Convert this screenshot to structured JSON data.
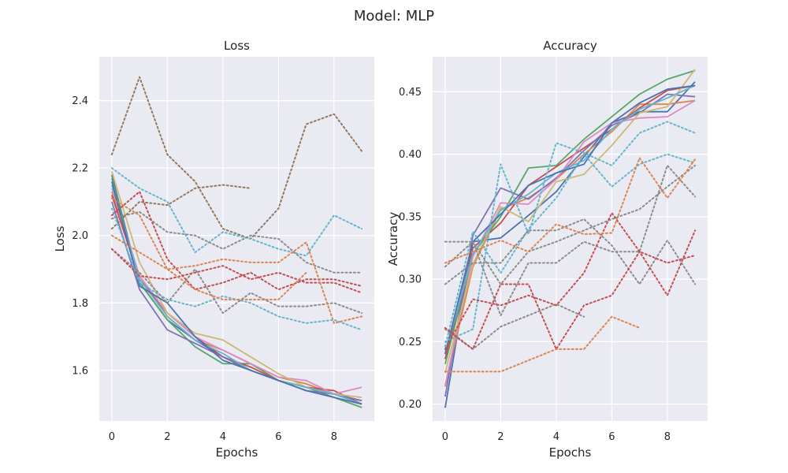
{
  "figure": {
    "title": "Model: MLP",
    "background": "#ffffff",
    "axes_background": "#eaeaf2",
    "grid_color": "#ffffff"
  },
  "colors": [
    "#4c72b0",
    "#dd8452",
    "#55a868",
    "#c44e52",
    "#8172b3",
    "#937860",
    "#da8bc3",
    "#8c8c8c",
    "#ccb974",
    "#64b5cd"
  ],
  "chart_data": [
    {
      "type": "line",
      "title": "Loss",
      "xlabel": "Epochs",
      "ylabel": "Loss",
      "xlim": [
        -0.45,
        9.45
      ],
      "ylim": [
        1.45,
        2.53
      ],
      "xticks": [
        0,
        2,
        4,
        6,
        8
      ],
      "yticks": [
        1.6,
        1.8,
        2.0,
        2.2,
        2.4
      ],
      "ytick_labels": [
        "1.6",
        "1.8",
        "2.0",
        "2.2",
        "2.4"
      ],
      "grid": true,
      "series": [
        {
          "style": "solid",
          "color": "#4c72b0",
          "x": [
            0,
            1,
            2,
            3,
            4,
            5,
            6,
            7,
            8,
            9
          ],
          "values": [
            2.18,
            1.86,
            1.75,
            1.69,
            1.64,
            1.6,
            1.57,
            1.55,
            1.53,
            1.51
          ]
        },
        {
          "style": "solid",
          "color": "#dd8452",
          "x": [
            0,
            1,
            2,
            3,
            4,
            5,
            6,
            7,
            8,
            9
          ],
          "values": [
            2.13,
            1.88,
            1.76,
            1.69,
            1.66,
            1.62,
            1.58,
            1.56,
            1.53,
            1.5
          ]
        },
        {
          "style": "solid",
          "color": "#55a868",
          "x": [
            0,
            1,
            2,
            3,
            4,
            5,
            6,
            7,
            8,
            9
          ],
          "values": [
            2.17,
            1.86,
            1.75,
            1.67,
            1.62,
            1.62,
            1.57,
            1.55,
            1.52,
            1.49
          ]
        },
        {
          "style": "solid",
          "color": "#c44e52",
          "x": [
            0,
            1,
            2,
            3,
            4,
            5,
            6,
            7,
            8,
            9
          ],
          "values": [
            2.12,
            1.87,
            1.77,
            1.7,
            1.64,
            1.61,
            1.57,
            1.55,
            1.54,
            1.5
          ]
        },
        {
          "style": "solid",
          "color": "#8172b3",
          "x": [
            0,
            1,
            2,
            3,
            4,
            5,
            6,
            7,
            8,
            9
          ],
          "values": [
            2.1,
            1.84,
            1.72,
            1.68,
            1.64,
            1.6,
            1.57,
            1.54,
            1.53,
            1.51
          ]
        },
        {
          "style": "solid",
          "color": "#da8bc3",
          "x": [
            0,
            1,
            2,
            3,
            4,
            5,
            6,
            7,
            8,
            9
          ],
          "values": [
            2.14,
            1.88,
            1.77,
            1.7,
            1.66,
            1.62,
            1.58,
            1.57,
            1.53,
            1.55
          ]
        },
        {
          "style": "solid",
          "color": "#ccb974",
          "x": [
            0,
            1,
            2,
            3,
            4,
            5,
            6,
            7,
            8,
            9
          ],
          "values": [
            2.19,
            1.92,
            1.77,
            1.71,
            1.69,
            1.64,
            1.59,
            1.55,
            1.53,
            1.52
          ]
        },
        {
          "style": "solid",
          "color": "#64b5cd",
          "x": [
            0,
            1,
            2,
            3,
            4,
            5,
            6,
            7,
            8,
            9
          ],
          "values": [
            2.15,
            1.87,
            1.76,
            1.69,
            1.65,
            1.6,
            1.57,
            1.55,
            1.53,
            1.5
          ]
        },
        {
          "style": "solid",
          "color": "#4c72b0",
          "x": [
            0,
            1,
            2,
            3,
            4,
            5,
            6,
            7,
            8,
            9
          ],
          "values": [
            2.16,
            1.85,
            1.8,
            1.7,
            1.63,
            1.6,
            1.57,
            1.54,
            1.52,
            1.5
          ]
        },
        {
          "style": "dotted",
          "color": "#937860",
          "x": [
            0,
            1,
            2,
            3,
            4,
            5,
            6,
            7,
            8,
            9
          ],
          "values": [
            2.24,
            2.47,
            2.24,
            2.16,
            2.02,
            1.99,
            2.08,
            2.33,
            2.36,
            2.25
          ]
        },
        {
          "style": "dotted",
          "color": "#937860",
          "x": [
            0,
            1,
            2,
            3,
            4,
            5
          ],
          "values": [
            2.02,
            2.1,
            2.09,
            2.14,
            2.15,
            2.14
          ]
        },
        {
          "style": "dotted",
          "color": "#64b5cd",
          "x": [
            0,
            1,
            2,
            3,
            4,
            5,
            6,
            7,
            8,
            9
          ],
          "values": [
            2.2,
            2.14,
            2.1,
            1.95,
            2.01,
            1.99,
            1.96,
            1.94,
            2.06,
            2.02
          ]
        },
        {
          "style": "dotted",
          "color": "#64b5cd",
          "x": [
            0,
            1,
            2,
            3,
            4,
            5,
            6,
            7,
            8,
            9
          ],
          "values": [
            2.08,
            1.86,
            1.81,
            1.79,
            1.82,
            1.8,
            1.76,
            1.74,
            1.75,
            1.72
          ]
        },
        {
          "style": "dotted",
          "color": "#8c8c8c",
          "x": [
            0,
            1,
            2,
            3,
            4,
            5,
            6,
            7,
            8,
            9
          ],
          "values": [
            2.05,
            2.07,
            2.01,
            2.0,
            1.96,
            2.0,
            1.99,
            1.92,
            1.89,
            1.89
          ]
        },
        {
          "style": "dotted",
          "color": "#8c8c8c",
          "x": [
            0,
            1,
            2,
            3,
            4,
            5,
            6,
            7,
            8,
            9
          ],
          "values": [
            1.96,
            1.89,
            1.8,
            1.9,
            1.77,
            1.83,
            1.79,
            1.79,
            1.8,
            1.77
          ]
        },
        {
          "style": "dotted",
          "color": "#c44e52",
          "x": [
            0,
            1,
            2,
            3,
            4,
            5,
            6,
            7,
            8,
            9
          ],
          "values": [
            2.06,
            2.13,
            1.93,
            1.84,
            1.86,
            1.89,
            1.84,
            1.87,
            1.87,
            1.85
          ]
        },
        {
          "style": "dotted",
          "color": "#c44e52",
          "x": [
            0,
            1,
            2,
            3,
            4,
            5,
            6,
            7,
            8,
            9
          ],
          "values": [
            1.96,
            1.88,
            1.87,
            1.89,
            1.91,
            1.87,
            1.89,
            1.86,
            1.86,
            1.83
          ]
        },
        {
          "style": "dotted",
          "color": "#dd8452",
          "x": [
            0,
            1,
            2,
            3,
            4,
            5,
            6,
            7,
            8,
            9
          ],
          "values": [
            2.11,
            2.06,
            1.9,
            1.91,
            1.93,
            1.92,
            1.92,
            1.98,
            1.74,
            1.76
          ]
        },
        {
          "style": "dotted",
          "color": "#dd8452",
          "x": [
            0,
            1,
            2,
            3,
            4,
            5,
            6,
            7
          ],
          "values": [
            2.0,
            1.95,
            1.9,
            1.84,
            1.81,
            1.81,
            1.81,
            1.89
          ]
        }
      ]
    },
    {
      "type": "line",
      "title": "Accuracy",
      "xlabel": "Epochs",
      "ylabel": "Accuracy",
      "xlim": [
        -0.45,
        9.45
      ],
      "ylim": [
        0.1865,
        0.478
      ],
      "xticks": [
        0,
        2,
        4,
        6,
        8
      ],
      "yticks": [
        0.2,
        0.25,
        0.3,
        0.35,
        0.4,
        0.45
      ],
      "ytick_labels": [
        "0.20",
        "0.25",
        "0.30",
        "0.35",
        "0.40",
        "0.45"
      ],
      "grid": true,
      "series": [
        {
          "style": "solid",
          "color": "#4c72b0",
          "x": [
            0,
            1,
            2,
            3,
            4,
            5,
            6,
            7,
            8,
            9
          ],
          "values": [
            0.197,
            0.33,
            0.333,
            0.351,
            0.37,
            0.398,
            0.425,
            0.434,
            0.434,
            0.458
          ]
        },
        {
          "style": "solid",
          "color": "#dd8452",
          "x": [
            0,
            1,
            2,
            3,
            4,
            5,
            6,
            7,
            8,
            9
          ],
          "values": [
            0.214,
            0.31,
            0.356,
            0.365,
            0.38,
            0.4,
            0.418,
            0.44,
            0.44,
            0.443
          ]
        },
        {
          "style": "solid",
          "color": "#55a868",
          "x": [
            0,
            1,
            2,
            3,
            4,
            5,
            6,
            7,
            8,
            9
          ],
          "values": [
            0.232,
            0.32,
            0.35,
            0.389,
            0.391,
            0.412,
            0.43,
            0.448,
            0.46,
            0.467
          ]
        },
        {
          "style": "solid",
          "color": "#c44e52",
          "x": [
            0,
            1,
            2,
            3,
            4,
            5,
            6,
            7,
            8,
            9
          ],
          "values": [
            0.236,
            0.325,
            0.345,
            0.375,
            0.39,
            0.405,
            0.42,
            0.437,
            0.451,
            0.455
          ]
        },
        {
          "style": "solid",
          "color": "#8172b3",
          "x": [
            0,
            1,
            2,
            3,
            4,
            5,
            6,
            7,
            8,
            9
          ],
          "values": [
            0.206,
            0.335,
            0.373,
            0.364,
            0.381,
            0.403,
            0.423,
            0.433,
            0.448,
            0.446
          ]
        },
        {
          "style": "solid",
          "color": "#da8bc3",
          "x": [
            0,
            1,
            2,
            3,
            4,
            5,
            6,
            7,
            8,
            9
          ],
          "values": [
            0.215,
            0.318,
            0.361,
            0.36,
            0.38,
            0.41,
            0.425,
            0.429,
            0.43,
            0.443
          ]
        },
        {
          "style": "solid",
          "color": "#ccb974",
          "x": [
            0,
            1,
            2,
            3,
            4,
            5,
            6,
            7,
            8,
            9
          ],
          "values": [
            0.225,
            0.312,
            0.358,
            0.346,
            0.378,
            0.384,
            0.407,
            0.433,
            0.438,
            0.468
          ]
        },
        {
          "style": "solid",
          "color": "#64b5cd",
          "x": [
            0,
            1,
            2,
            3,
            4,
            5,
            6,
            7,
            8,
            9
          ],
          "values": [
            0.241,
            0.32,
            0.355,
            0.368,
            0.385,
            0.395,
            0.42,
            0.436,
            0.445,
            0.455
          ]
        },
        {
          "style": "solid",
          "color": "#4c72b0",
          "x": [
            0,
            1,
            2,
            3,
            4,
            5,
            6,
            7,
            8,
            9
          ],
          "values": [
            0.24,
            0.33,
            0.352,
            0.375,
            0.385,
            0.392,
            0.425,
            0.441,
            0.452,
            0.455
          ]
        },
        {
          "style": "dotted",
          "color": "#64b5cd",
          "x": [
            0,
            1,
            2,
            3,
            4,
            5,
            6,
            7,
            8,
            9
          ],
          "values": [
            0.246,
            0.338,
            0.305,
            0.34,
            0.365,
            0.4,
            0.374,
            0.392,
            0.4,
            0.393
          ]
        },
        {
          "style": "dotted",
          "color": "#64b5cd",
          "x": [
            0,
            1,
            2,
            3,
            4,
            5,
            6,
            7,
            8,
            9
          ],
          "values": [
            0.25,
            0.26,
            0.392,
            0.336,
            0.409,
            0.401,
            0.391,
            0.417,
            0.426,
            0.417
          ]
        },
        {
          "style": "dotted",
          "color": "#8c8c8c",
          "x": [
            0,
            1,
            2,
            3,
            4,
            5,
            6,
            7,
            8,
            9
          ],
          "values": [
            0.33,
            0.33,
            0.271,
            0.313,
            0.313,
            0.33,
            0.322,
            0.322,
            0.391,
            0.366
          ]
        },
        {
          "style": "dotted",
          "color": "#8c8c8c",
          "x": [
            0,
            1,
            2,
            3,
            4,
            5,
            6,
            7,
            8,
            9
          ],
          "values": [
            0.296,
            0.313,
            0.313,
            0.339,
            0.339,
            0.348,
            0.327,
            0.296,
            0.331,
            0.296
          ]
        },
        {
          "style": "dotted",
          "color": "#8c8c8c",
          "x": [
            0,
            1,
            2,
            3,
            4,
            5,
            6,
            7,
            8,
            9
          ],
          "values": [
            0.31,
            0.33,
            0.296,
            0.322,
            0.33,
            0.339,
            0.348,
            0.356,
            0.374,
            0.391
          ]
        },
        {
          "style": "dotted",
          "color": "#8c8c8c",
          "x": [
            0,
            1,
            2,
            3,
            4,
            5
          ],
          "values": [
            0.26,
            0.244,
            0.262,
            0.271,
            0.28,
            0.27
          ]
        },
        {
          "style": "dotted",
          "color": "#c44e52",
          "x": [
            0,
            1,
            2,
            3,
            4,
            5,
            6,
            7,
            8,
            9
          ],
          "values": [
            0.261,
            0.244,
            0.296,
            0.296,
            0.244,
            0.279,
            0.287,
            0.322,
            0.287,
            0.339
          ]
        },
        {
          "style": "dotted",
          "color": "#c44e52",
          "x": [
            0,
            1,
            2,
            3,
            4,
            5,
            6,
            7,
            8,
            9
          ],
          "values": [
            0.244,
            0.284,
            0.279,
            0.287,
            0.279,
            0.305,
            0.353,
            0.322,
            0.313,
            0.319
          ]
        },
        {
          "style": "dotted",
          "color": "#dd8452",
          "x": [
            0,
            1,
            2,
            3,
            4,
            5,
            6,
            7,
            8,
            9
          ],
          "values": [
            0.313,
            0.322,
            0.331,
            0.322,
            0.344,
            0.336,
            0.337,
            0.397,
            0.365,
            0.396
          ]
        },
        {
          "style": "dotted",
          "color": "#dd8452",
          "x": [
            0,
            1,
            2,
            3,
            4,
            5,
            6,
            7
          ],
          "values": [
            0.226,
            0.226,
            0.226,
            0.235,
            0.244,
            0.244,
            0.27,
            0.261
          ]
        }
      ]
    }
  ]
}
